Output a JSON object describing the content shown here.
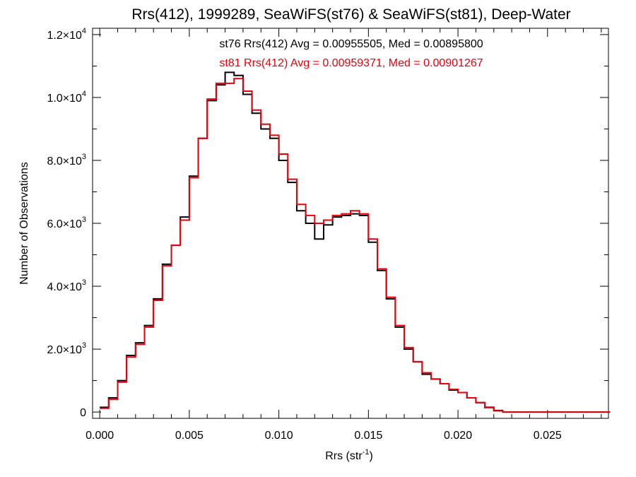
{
  "chart_data": {
    "type": "histogram-step",
    "title": "Rrs(412), 1999289, SeaWiFS(st76) & SeaWiFS(st81), Deep-Water",
    "xlabel": "Rrs (str",
    "xlabel_sup": "-1",
    "xlabel_close": ")",
    "ylabel": "Number of Observations",
    "xlim": [
      -0.0004,
      0.0284
    ],
    "ylim": [
      -200,
      12200
    ],
    "x_ticks": [
      {
        "value": 0.0,
        "label": "0.000"
      },
      {
        "value": 0.005,
        "label": "0.005"
      },
      {
        "value": 0.01,
        "label": "0.010"
      },
      {
        "value": 0.015,
        "label": "0.015"
      },
      {
        "value": 0.02,
        "label": "0.020"
      },
      {
        "value": 0.025,
        "label": "0.025"
      }
    ],
    "y_ticks": [
      {
        "value": 0,
        "mant": "0",
        "exp": ""
      },
      {
        "value": 2000,
        "mant": "2.0×10",
        "exp": "3"
      },
      {
        "value": 4000,
        "mant": "4.0×10",
        "exp": "3"
      },
      {
        "value": 6000,
        "mant": "6.0×10",
        "exp": "3"
      },
      {
        "value": 8000,
        "mant": "8.0×10",
        "exp": "3"
      },
      {
        "value": 10000,
        "mant": "1.0×10",
        "exp": "4"
      },
      {
        "value": 12000,
        "mant": "1.2×10",
        "exp": "4"
      }
    ],
    "annotations": [
      {
        "text": "st76 Rrs(412) Avg = 0.00955505, Med = 0.00895800",
        "color": "#000000"
      },
      {
        "text": "st81 Rrs(412) Avg = 0.00959371, Med = 0.00901267",
        "color": "#e8000b"
      }
    ],
    "series": [
      {
        "color": "#000000",
        "x": [
          0.0,
          0.0005,
          0.001,
          0.0015,
          0.002,
          0.0025,
          0.003,
          0.0035,
          0.004,
          0.0045,
          0.005,
          0.0055,
          0.006,
          0.0065,
          0.007,
          0.0075,
          0.008,
          0.0085,
          0.009,
          0.0095,
          0.01,
          0.0105,
          0.011,
          0.0115,
          0.012,
          0.0125,
          0.013,
          0.0135,
          0.014,
          0.0145,
          0.015,
          0.0155,
          0.016,
          0.0165,
          0.017,
          0.0175,
          0.018,
          0.0185,
          0.019,
          0.0195,
          0.02,
          0.0205,
          0.021,
          0.0215,
          0.022,
          0.0225,
          0.023,
          0.0235,
          0.024,
          0.0285
        ],
        "y": [
          150,
          450,
          1000,
          1800,
          2200,
          2750,
          3600,
          4700,
          5300,
          6200,
          7500,
          8700,
          9900,
          10400,
          10800,
          10700,
          10100,
          9500,
          9000,
          8700,
          8000,
          7300,
          6400,
          6000,
          5500,
          5950,
          6200,
          6250,
          6300,
          6250,
          5400,
          4500,
          3600,
          2700,
          2000,
          1600,
          1200,
          1050,
          900,
          700,
          620,
          450,
          300,
          150,
          50,
          0,
          0,
          0,
          0,
          0
        ]
      },
      {
        "color": "#e8000b",
        "x": [
          0.0,
          0.0005,
          0.001,
          0.0015,
          0.002,
          0.0025,
          0.003,
          0.0035,
          0.004,
          0.0045,
          0.005,
          0.0055,
          0.006,
          0.0065,
          0.007,
          0.0075,
          0.008,
          0.0085,
          0.009,
          0.0095,
          0.01,
          0.0105,
          0.011,
          0.0115,
          0.012,
          0.0125,
          0.013,
          0.0135,
          0.014,
          0.0145,
          0.015,
          0.0155,
          0.016,
          0.0165,
          0.017,
          0.0175,
          0.018,
          0.0185,
          0.019,
          0.0195,
          0.02,
          0.0205,
          0.021,
          0.0215,
          0.022,
          0.0225,
          0.023,
          0.0235,
          0.024,
          0.0285
        ],
        "y": [
          120,
          400,
          950,
          1750,
          2150,
          2700,
          3550,
          4650,
          5300,
          6100,
          7450,
          8700,
          9950,
          10450,
          10450,
          10600,
          10200,
          9600,
          9150,
          8800,
          8200,
          7400,
          6600,
          6250,
          6000,
          6100,
          6250,
          6300,
          6400,
          6300,
          5500,
          4550,
          3650,
          2750,
          2050,
          1600,
          1250,
          1050,
          900,
          720,
          620,
          450,
          300,
          140,
          40,
          0,
          0,
          0,
          0,
          0
        ]
      }
    ]
  }
}
